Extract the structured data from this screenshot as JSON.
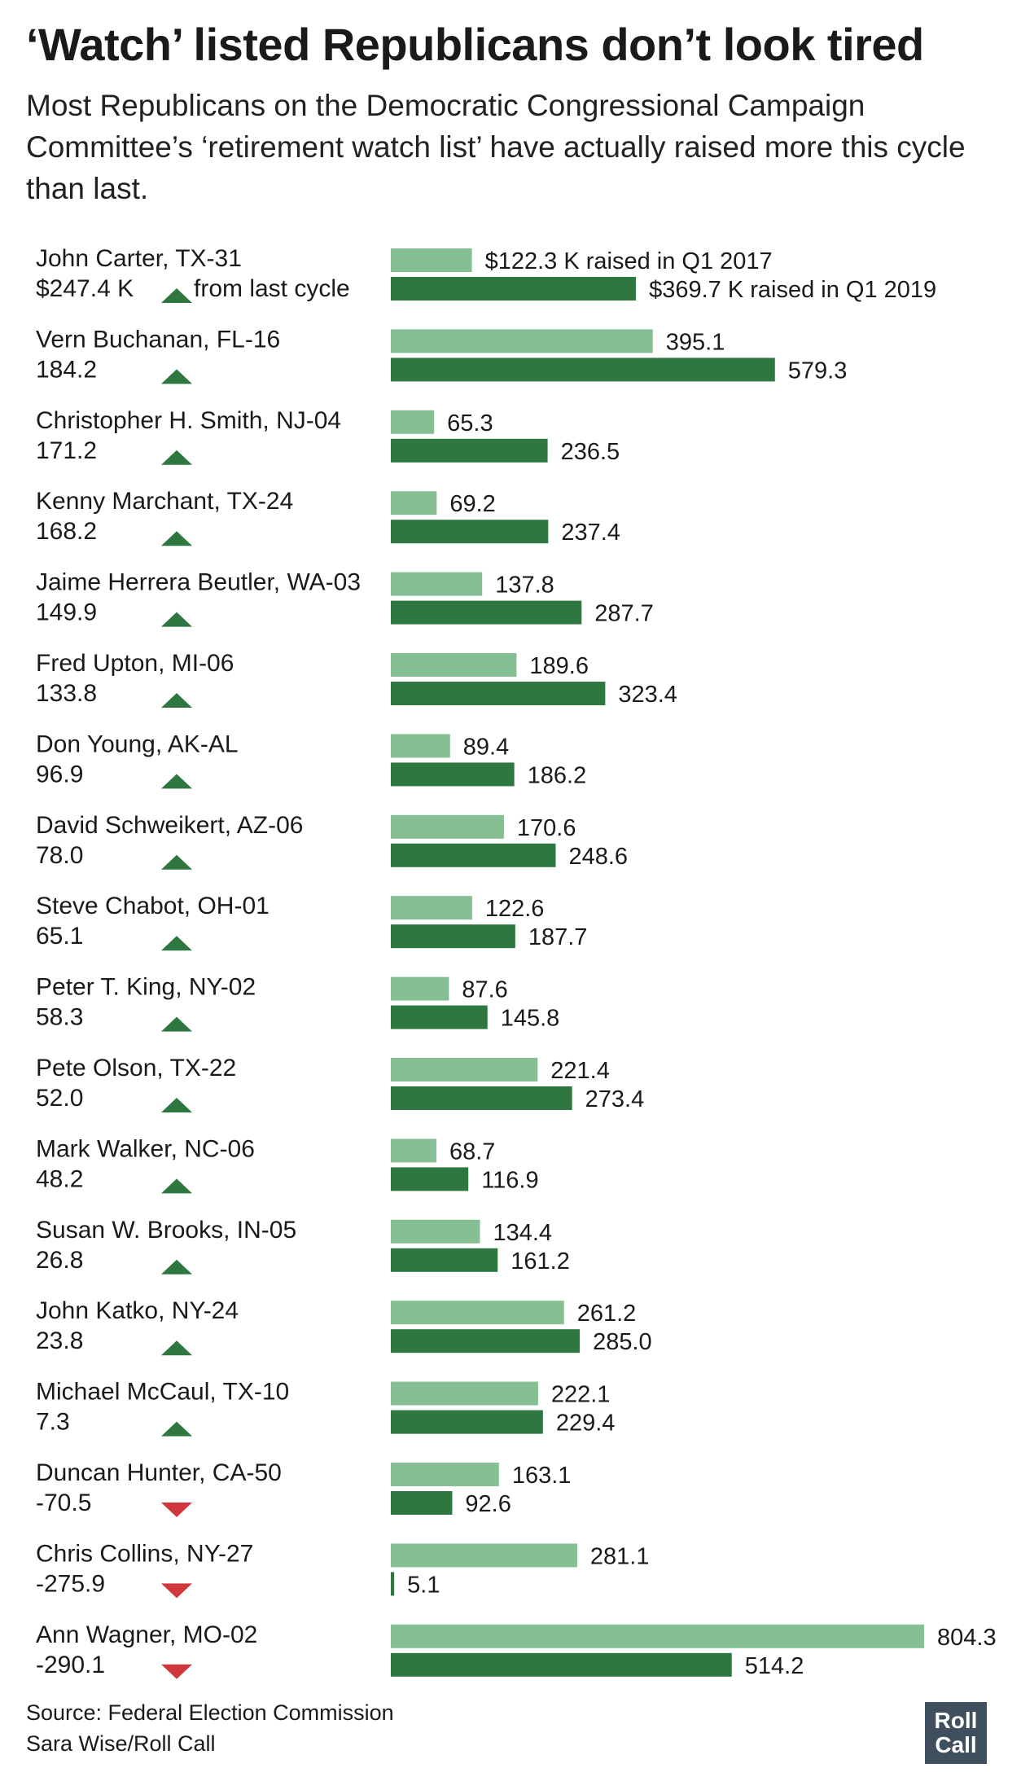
{
  "title": "‘Watch’ listed Republicans don’t look tired",
  "subtitle": "Most Republicans on the Democratic Congressional Campaign Committee’s ‘retirement watch list’ have actually raised more this cycle than last.",
  "source_line": "Source: Federal Election Commission",
  "credit_line": "Sara Wise/Roll Call",
  "logo_text": [
    "Roll",
    "Call"
  ],
  "colors": {
    "q1_2017": "#86bf94",
    "q1_2019": "#2e7741",
    "up": "#2e7741",
    "down": "#d0393b"
  },
  "chart_data": {
    "type": "bar",
    "orientation": "horizontal",
    "units": "thousands of dollars raised",
    "series_labels": {
      "q1_2017": "raised in Q1 2017",
      "q1_2019": "raised in Q1 2019",
      "change": "from last cycle"
    },
    "first_row_labels": {
      "change": "$247.4 K",
      "q1_2017": "$122.3 K raised in Q1 2017",
      "q1_2019": "$369.7 K raised in Q1 2019"
    },
    "rows": [
      {
        "name": "John Carter, TX-31",
        "change": "$247.4 K",
        "direction": "up",
        "q1_2017": 122.3,
        "q1_2019": 369.7
      },
      {
        "name": "Vern Buchanan, FL-16",
        "change": "184.2",
        "direction": "up",
        "q1_2017": 395.1,
        "q1_2019": 579.3
      },
      {
        "name": "Christopher H. Smith, NJ-04",
        "change": "171.2",
        "direction": "up",
        "q1_2017": 65.3,
        "q1_2019": 236.5
      },
      {
        "name": "Kenny Marchant, TX-24",
        "change": "168.2",
        "direction": "up",
        "q1_2017": 69.2,
        "q1_2019": 237.4
      },
      {
        "name": "Jaime Herrera Beutler, WA-03",
        "change": "149.9",
        "direction": "up",
        "q1_2017": 137.8,
        "q1_2019": 287.7
      },
      {
        "name": "Fred Upton, MI-06",
        "change": "133.8",
        "direction": "up",
        "q1_2017": 189.6,
        "q1_2019": 323.4
      },
      {
        "name": "Don Young, AK-AL",
        "change": "96.9",
        "direction": "up",
        "q1_2017": 89.4,
        "q1_2019": 186.2
      },
      {
        "name": "David Schweikert, AZ-06",
        "change": "78.0",
        "direction": "up",
        "q1_2017": 170.6,
        "q1_2019": 248.6
      },
      {
        "name": "Steve Chabot, OH-01",
        "change": "65.1",
        "direction": "up",
        "q1_2017": 122.6,
        "q1_2019": 187.7
      },
      {
        "name": "Peter T. King, NY-02",
        "change": "58.3",
        "direction": "up",
        "q1_2017": 87.6,
        "q1_2019": 145.8
      },
      {
        "name": "Pete Olson, TX-22",
        "change": "52.0",
        "direction": "up",
        "q1_2017": 221.4,
        "q1_2019": 273.4
      },
      {
        "name": "Mark Walker, NC-06",
        "change": "48.2",
        "direction": "up",
        "q1_2017": 68.7,
        "q1_2019": 116.9
      },
      {
        "name": "Susan W. Brooks, IN-05",
        "change": "26.8",
        "direction": "up",
        "q1_2017": 134.4,
        "q1_2019": 161.2
      },
      {
        "name": "John Katko, NY-24",
        "change": "23.8",
        "direction": "up",
        "q1_2017": 261.2,
        "q1_2019": 285.0
      },
      {
        "name": "Michael McCaul, TX-10",
        "change": "7.3",
        "direction": "up",
        "q1_2017": 222.1,
        "q1_2019": 229.4
      },
      {
        "name": "Duncan Hunter, CA-50",
        "change": "-70.5",
        "direction": "down",
        "q1_2017": 163.1,
        "q1_2019": 92.6
      },
      {
        "name": "Chris Collins, NY-27",
        "change": "-275.9",
        "direction": "down",
        "q1_2017": 281.1,
        "q1_2019": 5.1
      },
      {
        "name": "Ann Wagner, MO-02",
        "change": "-290.1",
        "direction": "down",
        "q1_2017": 804.3,
        "q1_2019": 514.2
      }
    ],
    "xlim": [
      0,
      804.3
    ]
  }
}
